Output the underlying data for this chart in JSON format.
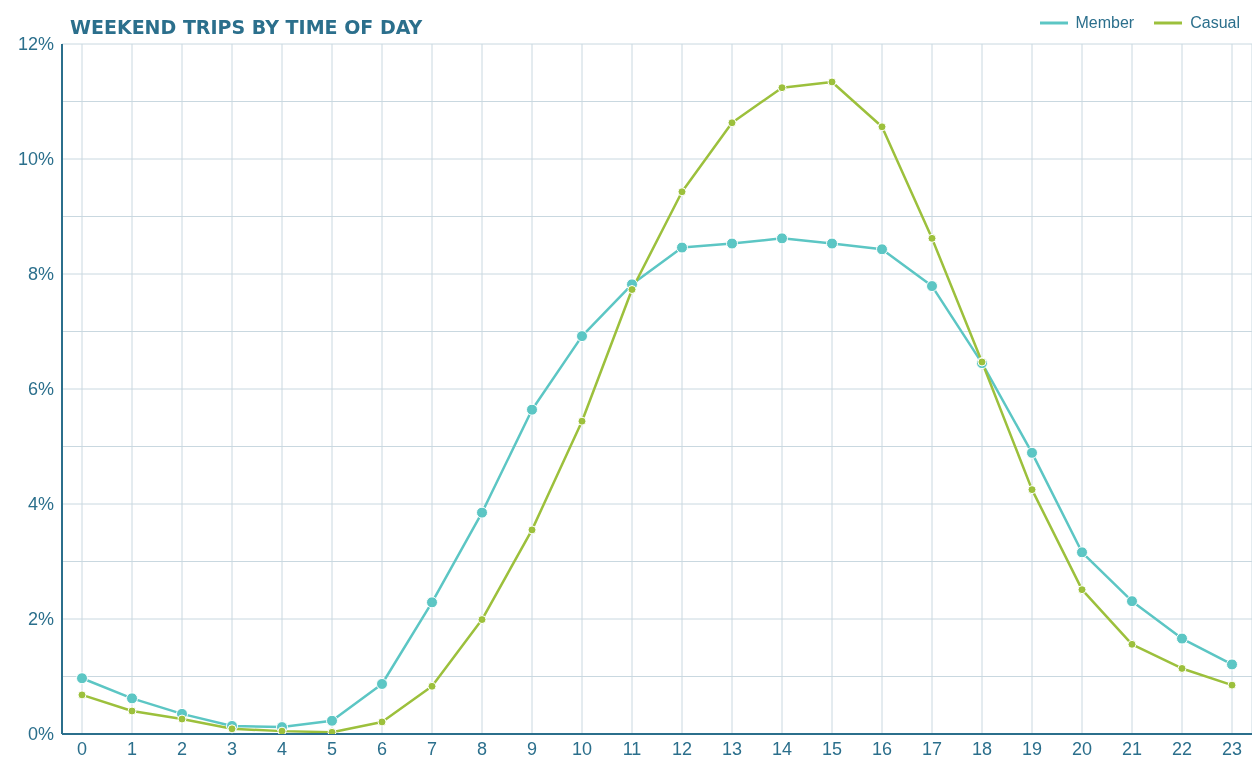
{
  "chart_data": {
    "type": "line",
    "title": "WEEKEND TRIPS BY TIME OF DAY",
    "x": [
      0,
      1,
      2,
      3,
      4,
      5,
      6,
      7,
      8,
      9,
      10,
      11,
      12,
      13,
      14,
      15,
      16,
      17,
      18,
      19,
      20,
      21,
      22,
      23
    ],
    "series": [
      {
        "name": "Member",
        "color": "#5cc6c4",
        "values": [
          0.97,
          0.62,
          0.35,
          0.14,
          0.12,
          0.23,
          0.87,
          2.29,
          3.85,
          5.64,
          6.92,
          7.82,
          8.46,
          8.53,
          8.62,
          8.53,
          8.43,
          7.79,
          6.45,
          4.89,
          3.16,
          2.31,
          1.66,
          1.21
        ]
      },
      {
        "name": "Casual",
        "color": "#9cc03c",
        "values": [
          0.68,
          0.4,
          0.26,
          0.09,
          0.05,
          0.03,
          0.21,
          0.83,
          1.99,
          3.55,
          5.44,
          7.73,
          9.43,
          10.63,
          11.24,
          11.34,
          10.56,
          8.62,
          6.47,
          4.25,
          2.51,
          1.56,
          1.14,
          0.85
        ]
      }
    ],
    "xlim": [
      -0.4,
      23.4
    ],
    "xticks": [
      0,
      1,
      2,
      3,
      4,
      5,
      6,
      7,
      8,
      9,
      10,
      11,
      12,
      13,
      14,
      15,
      16,
      17,
      18,
      19,
      20,
      21,
      22,
      23
    ],
    "ylim": [
      0,
      12
    ],
    "yticks": [
      {
        "value": 0,
        "label": "0%"
      },
      {
        "value": 1,
        "label": null
      },
      {
        "value": 2,
        "label": "2%"
      },
      {
        "value": 3,
        "label": null
      },
      {
        "value": 4,
        "label": "4%"
      },
      {
        "value": 5,
        "label": null
      },
      {
        "value": 6,
        "label": "6%"
      },
      {
        "value": 7,
        "label": null
      },
      {
        "value": 8,
        "label": "8%"
      },
      {
        "value": 9,
        "label": null
      },
      {
        "value": 10,
        "label": "10%"
      },
      {
        "value": 11,
        "label": null
      },
      {
        "value": 12,
        "label": "12%"
      }
    ],
    "grid": true,
    "legend": "top right",
    "marker": "circle",
    "line_style": "solid"
  }
}
